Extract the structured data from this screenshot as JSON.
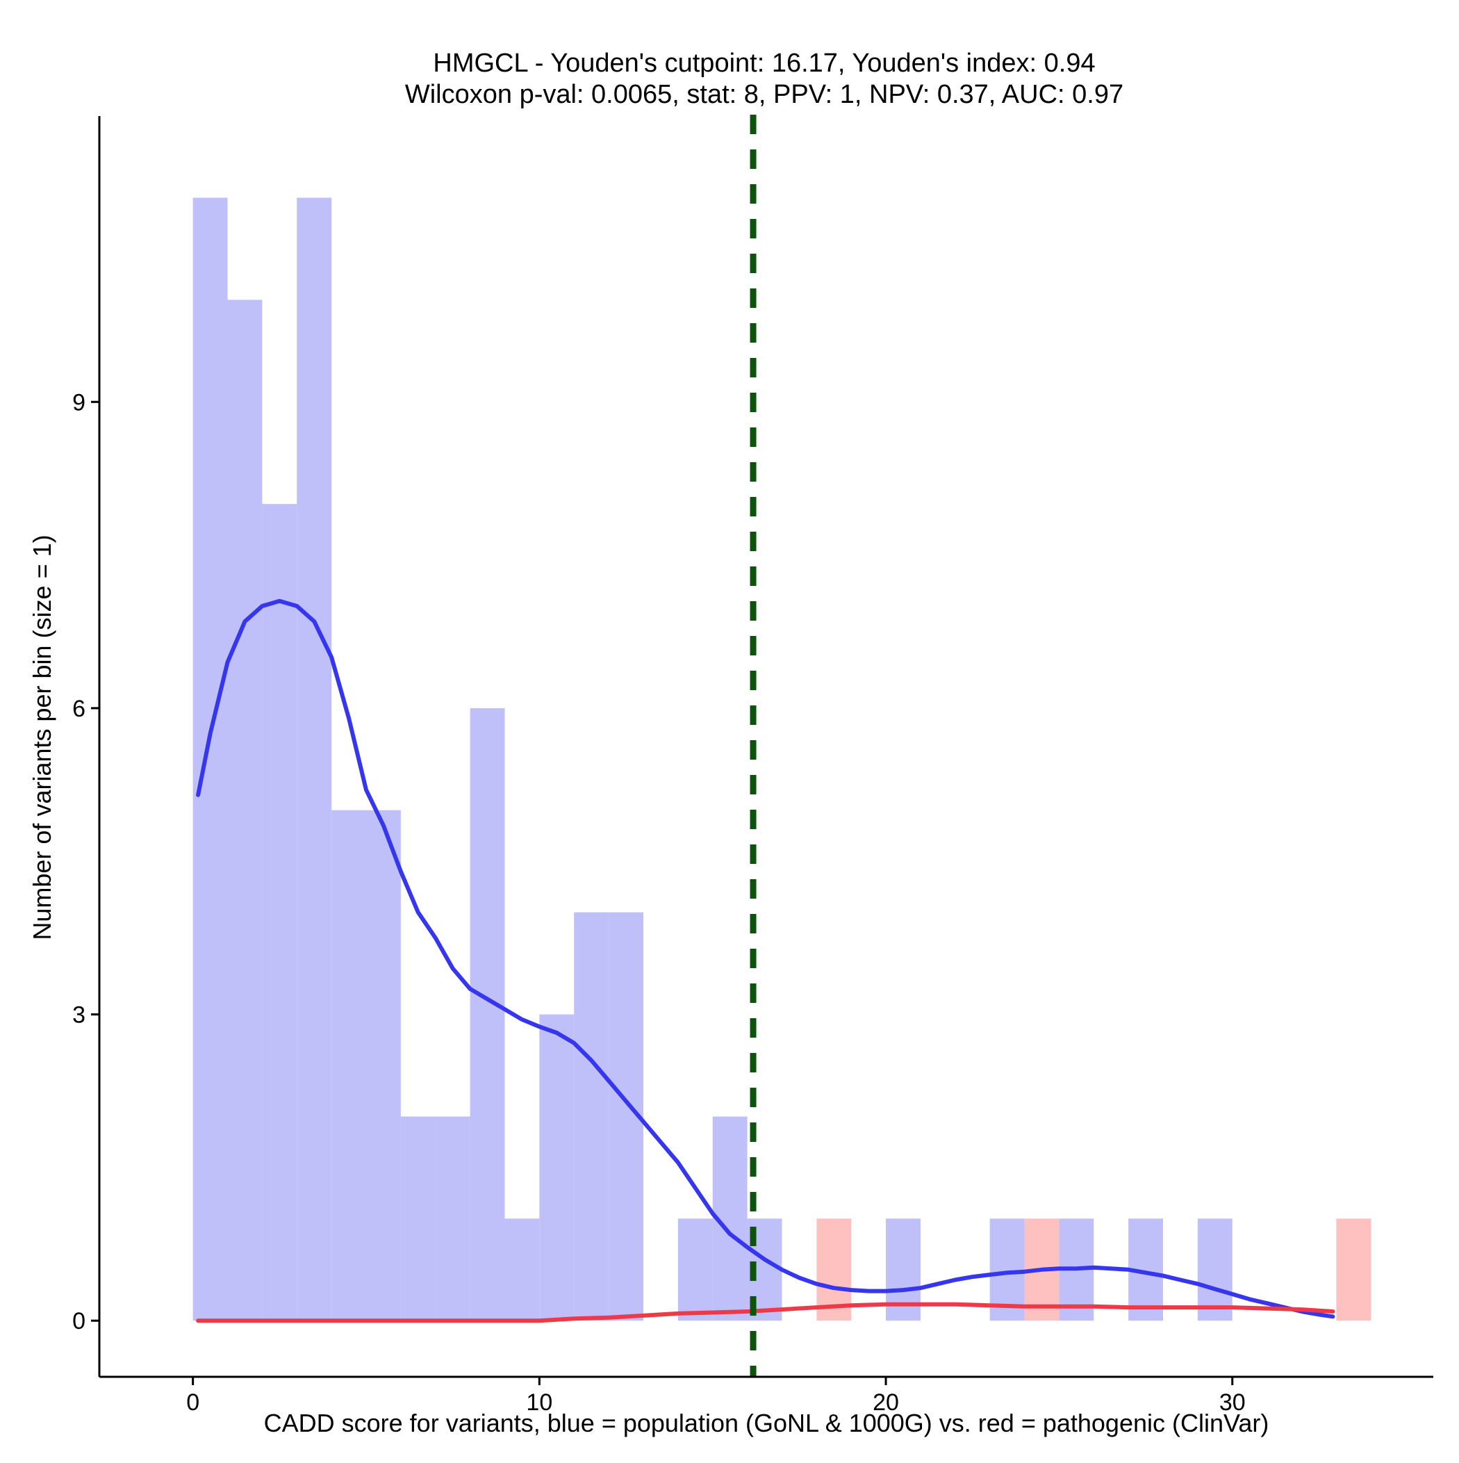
{
  "chart_data": {
    "type": "histogram",
    "title_lines": [
      "HMGCL - Youden's cutpoint: 16.17, Youden's index: 0.94",
      "Wilcoxon p-val: 0.0065, stat: 8, PPV: 1, NPV: 0.37, AUC: 0.97"
    ],
    "xlabel": "CADD score for variants, blue = population (GoNL & 1000G) vs. red = pathogenic (ClinVar)",
    "ylabel": "Number of variants per bin (size = 1)",
    "xlim": [
      -2.7,
      35.8
    ],
    "ylim": [
      -0.55,
      11.8
    ],
    "x_ticks": [
      0,
      10,
      20,
      30
    ],
    "y_ticks": [
      0,
      3,
      6,
      9
    ],
    "grid": false,
    "cutpoint": 16.17,
    "colors": {
      "population_bar": "#bfbffa",
      "pathogenic_bar": "#ffc0c0",
      "population_line": "#3636ee",
      "pathogenic_line": "#ee3a48",
      "cutpoint_line": "#0d520d"
    },
    "series": [
      {
        "name": "population (GoNL & 1000G)",
        "bins": [
          {
            "x0": 0,
            "x1": 1,
            "count": 11
          },
          {
            "x0": 1,
            "x1": 2,
            "count": 10
          },
          {
            "x0": 2,
            "x1": 3,
            "count": 8
          },
          {
            "x0": 3,
            "x1": 4,
            "count": 11
          },
          {
            "x0": 4,
            "x1": 5,
            "count": 5
          },
          {
            "x0": 5,
            "x1": 6,
            "count": 5
          },
          {
            "x0": 6,
            "x1": 7,
            "count": 2
          },
          {
            "x0": 7,
            "x1": 8,
            "count": 2
          },
          {
            "x0": 8,
            "x1": 9,
            "count": 6
          },
          {
            "x0": 9,
            "x1": 10,
            "count": 1
          },
          {
            "x0": 10,
            "x1": 11,
            "count": 3
          },
          {
            "x0": 11,
            "x1": 12,
            "count": 4
          },
          {
            "x0": 12,
            "x1": 13,
            "count": 4
          },
          {
            "x0": 14,
            "x1": 15,
            "count": 1
          },
          {
            "x0": 15,
            "x1": 16,
            "count": 2
          },
          {
            "x0": 16,
            "x1": 17,
            "count": 1
          },
          {
            "x0": 20,
            "x1": 21,
            "count": 1
          },
          {
            "x0": 23,
            "x1": 24,
            "count": 1
          },
          {
            "x0": 25,
            "x1": 26,
            "count": 1
          },
          {
            "x0": 27,
            "x1": 28,
            "count": 1
          },
          {
            "x0": 29,
            "x1": 30,
            "count": 1
          }
        ],
        "density": [
          [
            0.15,
            5.15
          ],
          [
            0.5,
            5.75
          ],
          [
            1.0,
            6.45
          ],
          [
            1.5,
            6.85
          ],
          [
            2.0,
            7.0
          ],
          [
            2.5,
            7.05
          ],
          [
            3.0,
            7.0
          ],
          [
            3.5,
            6.85
          ],
          [
            4.0,
            6.5
          ],
          [
            4.5,
            5.9
          ],
          [
            5.0,
            5.2
          ],
          [
            5.5,
            4.85
          ],
          [
            6.0,
            4.4
          ],
          [
            6.5,
            4.0
          ],
          [
            7.0,
            3.75
          ],
          [
            7.5,
            3.45
          ],
          [
            8.0,
            3.25
          ],
          [
            8.5,
            3.15
          ],
          [
            9.0,
            3.05
          ],
          [
            9.5,
            2.95
          ],
          [
            10.0,
            2.88
          ],
          [
            10.5,
            2.82
          ],
          [
            11.0,
            2.72
          ],
          [
            11.5,
            2.55
          ],
          [
            12.0,
            2.35
          ],
          [
            12.5,
            2.15
          ],
          [
            13.0,
            1.95
          ],
          [
            13.5,
            1.75
          ],
          [
            14.0,
            1.55
          ],
          [
            14.5,
            1.3
          ],
          [
            15.0,
            1.05
          ],
          [
            15.5,
            0.85
          ],
          [
            16.0,
            0.72
          ],
          [
            16.5,
            0.6
          ],
          [
            17.0,
            0.5
          ],
          [
            17.5,
            0.42
          ],
          [
            18.0,
            0.36
          ],
          [
            18.5,
            0.32
          ],
          [
            19.0,
            0.3
          ],
          [
            19.5,
            0.29
          ],
          [
            20.0,
            0.29
          ],
          [
            20.5,
            0.3
          ],
          [
            21.0,
            0.32
          ],
          [
            21.5,
            0.36
          ],
          [
            22.0,
            0.4
          ],
          [
            22.5,
            0.43
          ],
          [
            23.0,
            0.45
          ],
          [
            23.5,
            0.47
          ],
          [
            24.0,
            0.48
          ],
          [
            24.5,
            0.5
          ],
          [
            25.0,
            0.51
          ],
          [
            25.5,
            0.51
          ],
          [
            26.0,
            0.52
          ],
          [
            26.5,
            0.51
          ],
          [
            27.0,
            0.5
          ],
          [
            27.5,
            0.47
          ],
          [
            28.0,
            0.44
          ],
          [
            28.5,
            0.4
          ],
          [
            29.0,
            0.36
          ],
          [
            29.5,
            0.31
          ],
          [
            30.0,
            0.26
          ],
          [
            30.5,
            0.21
          ],
          [
            31.0,
            0.17
          ],
          [
            31.5,
            0.13
          ],
          [
            32.0,
            0.09
          ],
          [
            32.5,
            0.06
          ],
          [
            32.9,
            0.04
          ]
        ]
      },
      {
        "name": "pathogenic (ClinVar)",
        "bins": [
          {
            "x0": 18,
            "x1": 19,
            "count": 1
          },
          {
            "x0": 24,
            "x1": 25,
            "count": 1
          },
          {
            "x0": 33,
            "x1": 34,
            "count": 1
          }
        ],
        "density": [
          [
            0.15,
            0.0
          ],
          [
            10.0,
            0.0
          ],
          [
            11.0,
            0.02
          ],
          [
            12.0,
            0.03
          ],
          [
            13.0,
            0.05
          ],
          [
            14.0,
            0.07
          ],
          [
            15.0,
            0.08
          ],
          [
            16.0,
            0.09
          ],
          [
            17.0,
            0.11
          ],
          [
            18.0,
            0.13
          ],
          [
            19.0,
            0.15
          ],
          [
            20.0,
            0.16
          ],
          [
            21.0,
            0.16
          ],
          [
            22.0,
            0.16
          ],
          [
            23.0,
            0.15
          ],
          [
            24.0,
            0.14
          ],
          [
            25.0,
            0.14
          ],
          [
            26.0,
            0.14
          ],
          [
            27.0,
            0.13
          ],
          [
            28.0,
            0.13
          ],
          [
            29.0,
            0.13
          ],
          [
            30.0,
            0.13
          ],
          [
            31.0,
            0.12
          ],
          [
            32.0,
            0.11
          ],
          [
            32.9,
            0.09
          ]
        ]
      }
    ]
  }
}
